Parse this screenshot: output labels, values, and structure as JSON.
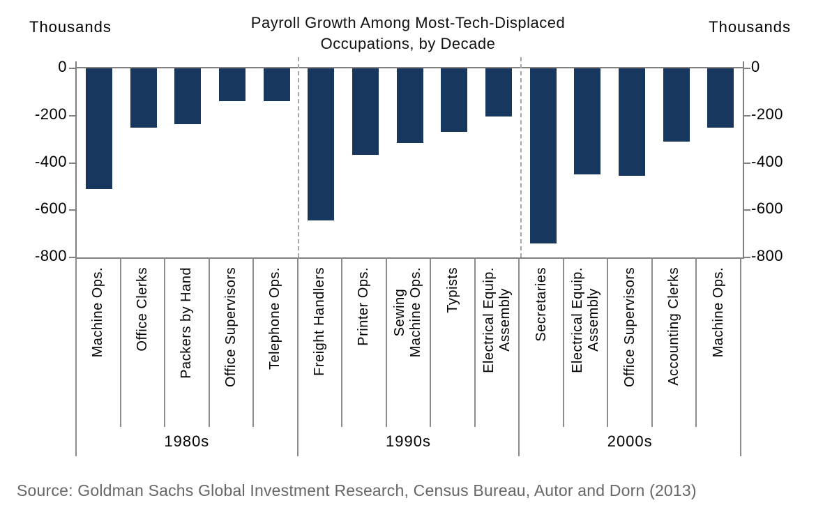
{
  "header": {
    "left_axis_unit": "Thousands",
    "right_axis_unit": "Thousands",
    "title_line1": "Payroll Growth Among Most-Tech-Displaced",
    "title_line2": "Occupations, by Decade"
  },
  "chart_data": {
    "type": "bar",
    "title": "Payroll Growth Among Most-Tech-Displaced Occupations, by Decade",
    "xlabel": "",
    "ylabel": "Thousands",
    "ylim": [
      -800,
      0
    ],
    "yticks": [
      0,
      -200,
      -400,
      -600,
      -800
    ],
    "grid": false,
    "legend": "none",
    "bar_color": "#17375E",
    "groups": [
      {
        "decade": "1980s",
        "categories": [
          "Machine Ops.",
          "Office Clerks",
          "Packers by Hand",
          "Office Supervisors",
          "Telephone Ops."
        ],
        "values": [
          -510,
          -250,
          -235,
          -140,
          -140
        ]
      },
      {
        "decade": "1990s",
        "categories": [
          "Freight Handlers",
          "Printer Ops.",
          "Sewing\nMachine Ops.",
          "Typists",
          "Electrical Equip.\nAssembly"
        ],
        "values": [
          -645,
          -365,
          -315,
          -270,
          -205
        ]
      },
      {
        "decade": "2000s",
        "categories": [
          "Secretaries",
          "Electrical Equip.\nAssembly",
          "Office Supervisors",
          "Accounting Clerks",
          "Machine Ops."
        ],
        "values": [
          -740,
          -450,
          -455,
          -310,
          -250
        ]
      }
    ]
  },
  "footer": {
    "source": "Source: Goldman Sachs Global Investment Research, Census Bureau, Autor and Dorn (2013)"
  },
  "colors": {
    "bar": "#17375E",
    "axis_line": "#808080",
    "divider_line": "#8C8C8C",
    "dashed_separator": "#A6A6A6",
    "text": "#000000",
    "source_text": "#666666"
  }
}
